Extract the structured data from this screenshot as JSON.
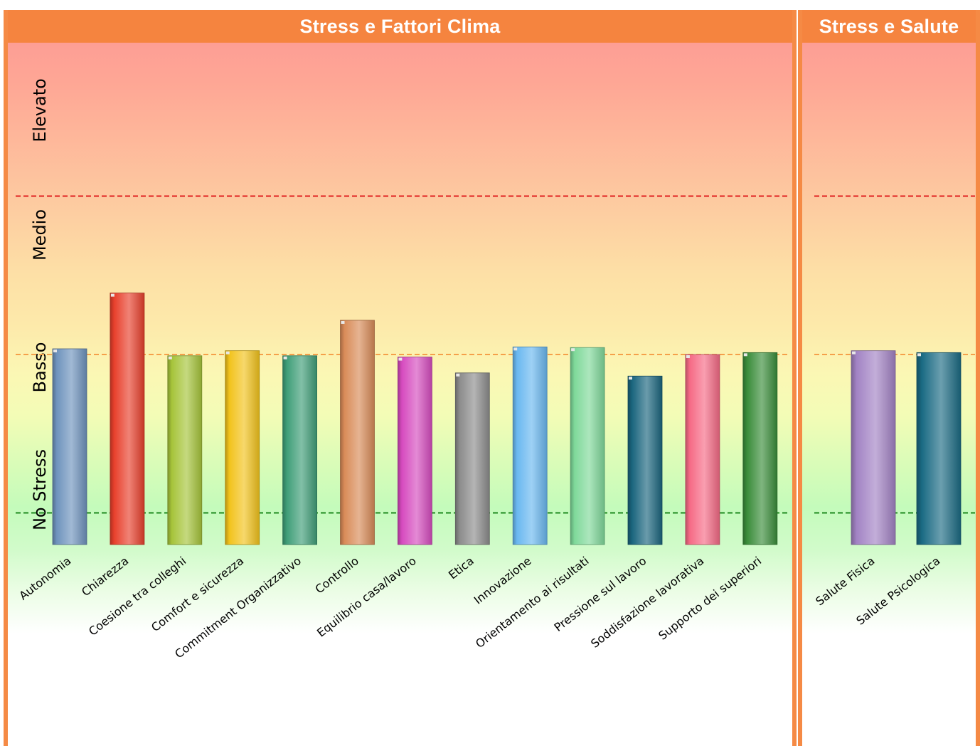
{
  "panels": {
    "left_title": "Stress e Fattori Clima",
    "right_title": "Stress e Salute"
  },
  "bands": [
    "Elevato",
    "Medio",
    "Basso",
    "No Stress"
  ],
  "colors": {
    "header": "#f5843f",
    "threshold_high": "#e02020",
    "threshold_mid": "#f5a04a",
    "threshold_low": "#1e8a1e"
  },
  "chart_data": [
    {
      "type": "bar",
      "title": "Stress e Fattori Clima",
      "ylim": [
        0,
        100
      ],
      "thresholds": {
        "low": 25,
        "mid": 50,
        "high": 75
      },
      "categories": [
        "Autonomia",
        "Chiarezza",
        "Coesione tra colleghi",
        "Comfort e sicurezza",
        "Commitment Organizzativo",
        "Controllo",
        "Equilibrio casa/lavoro",
        "Etica",
        "Innovazione",
        "Orientamento ai risultati",
        "Pressione sul lavoro",
        "Soddisfazione lavorativa",
        "Supporto dei superiori"
      ],
      "values": [
        50.9,
        59.7,
        49.8,
        50.6,
        49.8,
        55.4,
        49.6,
        47.1,
        51.2,
        51.1,
        46.6,
        50.0,
        50.3
      ],
      "colors": [
        "#6e93bd",
        "#e8402c",
        "#a6c43a",
        "#f2c31c",
        "#3f9e78",
        "#d98b58",
        "#d64bbf",
        "#8c8c8c",
        "#6ab8f0",
        "#7fd99a",
        "#1a657e",
        "#f56a85",
        "#3a8d3a"
      ]
    },
    {
      "type": "bar",
      "title": "Stress e Salute",
      "ylim": [
        0,
        100
      ],
      "thresholds": {
        "low": 25,
        "mid": 50,
        "high": 75
      },
      "categories": [
        "Salute Fisica",
        "Salute Psicologica"
      ],
      "values": [
        50.6,
        50.3
      ],
      "colors": [
        "#a283c4",
        "#1b6b84"
      ]
    }
  ]
}
